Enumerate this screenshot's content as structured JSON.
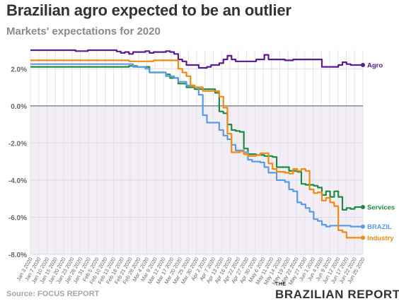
{
  "title": "Brazilian agro expected to be an outlier",
  "subtitle": "Markets' expectations for 2020",
  "source": "Source: FOCUS REPORT",
  "brand": {
    "top": "THE",
    "main": "BRAZILIAN REPORT"
  },
  "chart_data": {
    "type": "line",
    "title": "Brazilian agro expected to be an outlier",
    "subtitle": "Markets' expectations for 2020",
    "xlabel": "",
    "ylabel": "",
    "x_ticks": [
      "Jan 3 2020",
      "Jan 7 2020",
      "Jan 10 2020",
      "Jan 15 2020",
      "Jan 20 2020",
      "Jan 23 2020",
      "Jan 28 2020",
      "Jan 31 2020",
      "Feb 5 2020",
      "Feb 10 2020",
      "Feb 13 2020",
      "Feb 18 2020",
      "Feb 21 2020",
      "Feb 28 2020",
      "Mar 4 2020",
      "Mar 9 2020",
      "Mar 12 2020",
      "Mar 17 2020",
      "Mar 20 2020",
      "Mar 25 2020",
      "Mar 30 2020",
      "Apr 2 2020",
      "Apr 7 2020",
      "Apr 13 2020",
      "Apr 16 2020",
      "Apr 22 2020",
      "Apr 27 2020",
      "Apr 30 2020",
      "May 6 2020",
      "May 11 2020",
      "May 14 2020",
      "May 19 2020",
      "May 22 2020",
      "May 27 2020",
      "Jun 1 2020",
      "Jun 4 2020",
      "Jun 9 2020",
      "Jun 12 2020",
      "Jun 17 2020",
      "Jun 22 2020",
      "Jun 25 2020"
    ],
    "ylim": [
      -8,
      3
    ],
    "y_ticks": [
      2,
      0,
      -2,
      -4,
      -6,
      -8
    ],
    "y_tick_labels": [
      "2.0%",
      "0.0%",
      "-2.0%",
      "-4.0%",
      "-6.0%",
      "-8.0%"
    ],
    "grid": true,
    "negative_region_shaded": true,
    "series": [
      {
        "name": "Agro",
        "color": "#5b1a8f",
        "points": [
          [
            0,
            3.0
          ],
          [
            10,
            3.0
          ],
          [
            11,
            2.95
          ],
          [
            13,
            2.95
          ],
          [
            14,
            3.0
          ],
          [
            18,
            3.0
          ],
          [
            21,
            2.93
          ],
          [
            22,
            2.85
          ],
          [
            23,
            2.9
          ],
          [
            24,
            2.8
          ],
          [
            25,
            2.9
          ],
          [
            28,
            2.95
          ],
          [
            29,
            2.85
          ],
          [
            30,
            2.9
          ],
          [
            32,
            2.9
          ],
          [
            33,
            2.95
          ],
          [
            34,
            2.9
          ],
          [
            35,
            2.8
          ],
          [
            36,
            2.5
          ],
          [
            37,
            2.4
          ],
          [
            38,
            2.2
          ],
          [
            40,
            2.2
          ],
          [
            41,
            2.05
          ],
          [
            43,
            2.1
          ],
          [
            44,
            2.2
          ],
          [
            46,
            2.3
          ],
          [
            47,
            2.5
          ],
          [
            48,
            2.7
          ],
          [
            49,
            2.5
          ],
          [
            50,
            2.4
          ],
          [
            55,
            2.5
          ],
          [
            56,
            2.5
          ],
          [
            57,
            2.75
          ],
          [
            58,
            2.5
          ],
          [
            62,
            2.45
          ],
          [
            64,
            2.5
          ],
          [
            70,
            2.5
          ],
          [
            71,
            2.1
          ],
          [
            74,
            2.1
          ],
          [
            75,
            2.2
          ],
          [
            76,
            2.35
          ],
          [
            77,
            2.25
          ],
          [
            78,
            2.2
          ],
          [
            79,
            2.2
          ],
          [
            80,
            2.2
          ],
          [
            81,
            2.2
          ]
        ]
      },
      {
        "name": "Services",
        "color": "#1f8a43",
        "points": [
          [
            0,
            2.1
          ],
          [
            18,
            2.1
          ],
          [
            22,
            2.1
          ],
          [
            24,
            2.15
          ],
          [
            26,
            2.1
          ],
          [
            29,
            1.8
          ],
          [
            33,
            1.7
          ],
          [
            34,
            1.5
          ],
          [
            36,
            1.2
          ],
          [
            38,
            1.0
          ],
          [
            40,
            0.9
          ],
          [
            44,
            0.9
          ],
          [
            45,
            0.7
          ],
          [
            46,
            -0.3
          ],
          [
            47,
            -0.4
          ],
          [
            48,
            -1.0
          ],
          [
            49,
            -1.3
          ],
          [
            50,
            -1.35
          ],
          [
            51,
            -1.4
          ],
          [
            52,
            -2.3
          ],
          [
            53,
            -2.6
          ],
          [
            55,
            -2.65
          ],
          [
            57,
            -2.7
          ],
          [
            58,
            -2.7
          ],
          [
            59,
            -2.75
          ],
          [
            60,
            -3.3
          ],
          [
            61,
            -3.3
          ],
          [
            62,
            -3.3
          ],
          [
            63,
            -3.5
          ],
          [
            65,
            -3.55
          ],
          [
            66,
            -4.2
          ],
          [
            67,
            -4.25
          ],
          [
            69,
            -4.3
          ],
          [
            70,
            -4.4
          ],
          [
            71,
            -4.8
          ],
          [
            72,
            -4.6
          ],
          [
            73,
            -4.9
          ],
          [
            74,
            -4.6
          ],
          [
            75,
            -4.9
          ],
          [
            76,
            -5.6
          ],
          [
            77,
            -5.5
          ],
          [
            78,
            -5.55
          ],
          [
            79,
            -5.45
          ],
          [
            80,
            -5.45
          ],
          [
            81,
            -5.45
          ]
        ]
      },
      {
        "name": "BRAZIL",
        "color": "#5b9be6",
        "points": [
          [
            0,
            2.25
          ],
          [
            24,
            2.25
          ],
          [
            25,
            2.1
          ],
          [
            28,
            2.0
          ],
          [
            29,
            1.8
          ],
          [
            33,
            1.6
          ],
          [
            35,
            1.5
          ],
          [
            36,
            1.3
          ],
          [
            38,
            1.1
          ],
          [
            40,
            1.0
          ],
          [
            41,
            0.6
          ],
          [
            42,
            -0.5
          ],
          [
            43,
            -0.9
          ],
          [
            45,
            -0.9
          ],
          [
            46,
            -1.3
          ],
          [
            47,
            -1.6
          ],
          [
            48,
            -1.8
          ],
          [
            49,
            -2.1
          ],
          [
            50,
            -2.4
          ],
          [
            52,
            -2.5
          ],
          [
            53,
            -2.9
          ],
          [
            54,
            -3.0
          ],
          [
            56,
            -3.05
          ],
          [
            57,
            -3.3
          ],
          [
            58,
            -3.6
          ],
          [
            59,
            -3.6
          ],
          [
            60,
            -4.0
          ],
          [
            62,
            -4.1
          ],
          [
            63,
            -4.5
          ],
          [
            64,
            -4.6
          ],
          [
            65,
            -5.2
          ],
          [
            66,
            -5.3
          ],
          [
            67,
            -5.5
          ],
          [
            68,
            -5.7
          ],
          [
            69,
            -6.1
          ],
          [
            70,
            -6.2
          ],
          [
            71,
            -6.4
          ],
          [
            72,
            -6.5
          ],
          [
            73,
            -6.45
          ],
          [
            78,
            -6.5
          ],
          [
            79,
            -6.5
          ],
          [
            80,
            -6.5
          ],
          [
            81,
            -6.5
          ]
        ]
      },
      {
        "name": "Industry",
        "color": "#ef8a12",
        "points": [
          [
            0,
            2.45
          ],
          [
            24,
            2.4
          ],
          [
            25,
            2.4
          ],
          [
            29,
            2.4
          ],
          [
            30,
            2.45
          ],
          [
            35,
            2.45
          ],
          [
            36,
            2.0
          ],
          [
            37,
            1.8
          ],
          [
            38,
            1.6
          ],
          [
            39,
            1.1
          ],
          [
            40,
            1.0
          ],
          [
            41,
            1.0
          ],
          [
            42,
            0.8
          ],
          [
            45,
            0.8
          ],
          [
            46,
            0.5
          ],
          [
            47,
            -0.1
          ],
          [
            48,
            -1.5
          ],
          [
            49,
            -2.5
          ],
          [
            50,
            -2.5
          ],
          [
            51,
            -2.45
          ],
          [
            52,
            -2.6
          ],
          [
            53,
            -2.7
          ],
          [
            55,
            -2.65
          ],
          [
            56,
            -2.55
          ],
          [
            57,
            -2.55
          ],
          [
            58,
            -3.1
          ],
          [
            59,
            -3.4
          ],
          [
            60,
            -3.55
          ],
          [
            62,
            -3.6
          ],
          [
            63,
            -3.65
          ],
          [
            64,
            -3.4
          ],
          [
            65,
            -3.5
          ],
          [
            66,
            -3.4
          ],
          [
            67,
            -3.5
          ],
          [
            68,
            -4.5
          ],
          [
            69,
            -4.7
          ],
          [
            70,
            -4.65
          ],
          [
            71,
            -5.1
          ],
          [
            72,
            -4.95
          ],
          [
            73,
            -5.2
          ],
          [
            74,
            -5.4
          ],
          [
            75,
            -6.7
          ],
          [
            76,
            -6.8
          ],
          [
            77,
            -7.1
          ],
          [
            80,
            -7.1
          ],
          [
            81,
            -7.1
          ]
        ]
      }
    ],
    "legend": "inline labels at right end of each line"
  }
}
